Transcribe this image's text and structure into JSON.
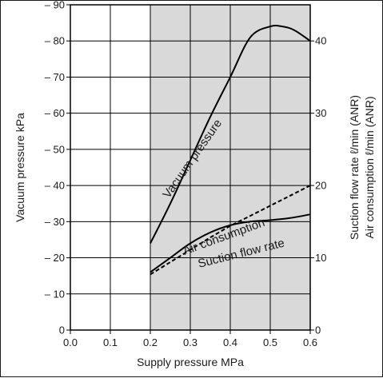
{
  "chart_data": {
    "type": "line",
    "xlabel": "Supply pressure MPa",
    "ylabel_left": "Vacuum pressure kPa",
    "ylabel_right_1": "Suction flow rate ℓ/min (ANR)",
    "ylabel_right_2": "Air consumption ℓ/min (ANR)",
    "xlim": [
      0.0,
      0.6
    ],
    "ylim_left": [
      0,
      -90
    ],
    "ylim_right": [
      0,
      45
    ],
    "x_ticks": [
      "0.0",
      "0.1",
      "0.2",
      "0.3",
      "0.4",
      "0.5",
      "0.6"
    ],
    "y_left_ticks": [
      "0",
      "– 10",
      "– 20",
      "– 30",
      "– 40",
      "– 50",
      "– 60",
      "– 70",
      "– 80",
      "– 90"
    ],
    "y_right_ticks": [
      "0",
      "10",
      "20",
      "30",
      "40"
    ],
    "grid": true,
    "shaded_region_x": [
      0.2,
      0.6
    ],
    "colors": {
      "shade": "#d9d9d9",
      "line": "#000000",
      "grid": "#000000"
    },
    "series": [
      {
        "name": "Vacuum pressure",
        "axis": "left",
        "style": "solid",
        "x": [
          0.2,
          0.25,
          0.3,
          0.35,
          0.4,
          0.45,
          0.5,
          0.53,
          0.56,
          0.6
        ],
        "y": [
          -24,
          -35,
          -47,
          -59,
          -70,
          -81,
          -84,
          -84,
          -83,
          -80
        ]
      },
      {
        "name": "Suction flow rate",
        "axis": "right",
        "style": "solid",
        "x": [
          0.2,
          0.25,
          0.3,
          0.35,
          0.4,
          0.45,
          0.5,
          0.55,
          0.6
        ],
        "y": [
          8.0,
          10.0,
          12.0,
          13.5,
          14.5,
          15.0,
          15.2,
          15.5,
          16.0
        ]
      },
      {
        "name": "Air consumption",
        "axis": "right",
        "style": "dashed",
        "x": [
          0.2,
          0.25,
          0.3,
          0.35,
          0.4,
          0.45,
          0.5,
          0.55,
          0.6
        ],
        "y": [
          7.7,
          9.4,
          11.1,
          12.8,
          14.4,
          15.8,
          17.2,
          18.6,
          20.0
        ]
      }
    ]
  }
}
